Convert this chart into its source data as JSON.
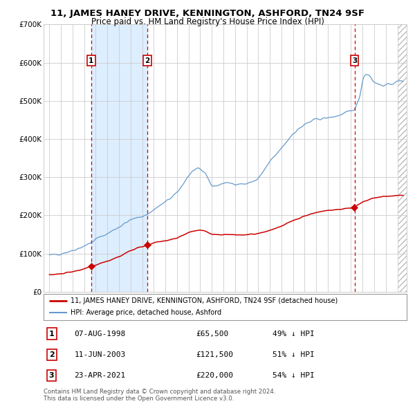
{
  "title": "11, JAMES HANEY DRIVE, KENNINGTON, ASHFORD, TN24 9SF",
  "subtitle": "Price paid vs. HM Land Registry's House Price Index (HPI)",
  "legend_red": "11, JAMES HANEY DRIVE, KENNINGTON, ASHFORD, TN24 9SF (detached house)",
  "legend_blue": "HPI: Average price, detached house, Ashford",
  "footnote1": "Contains HM Land Registry data © Crown copyright and database right 2024.",
  "footnote2": "This data is licensed under the Open Government Licence v3.0.",
  "transactions": [
    {
      "num": 1,
      "date": "07-AUG-1998",
      "price": 65500,
      "pct": "49%",
      "dir": "↓",
      "year": 1998.6
    },
    {
      "num": 2,
      "date": "11-JUN-2003",
      "price": 121500,
      "pct": "51%",
      "dir": "↓",
      "year": 2003.45
    },
    {
      "num": 3,
      "date": "23-APR-2021",
      "price": 220000,
      "pct": "54%",
      "dir": "↓",
      "year": 2021.3
    }
  ],
  "ylim": [
    0,
    700000
  ],
  "yticks": [
    0,
    100000,
    200000,
    300000,
    400000,
    500000,
    600000,
    700000
  ],
  "ytick_labels": [
    "£0",
    "£100K",
    "£200K",
    "£300K",
    "£400K",
    "£500K",
    "£600K",
    "£700K"
  ],
  "xlim_start": 1994.5,
  "xlim_end": 2025.8,
  "red_color": "#cc0000",
  "blue_color": "#6699cc",
  "shade_color": "#ddeeff",
  "grid_color": "#cccccc",
  "bg_color": "#ffffff",
  "hatch_color": "#e8e8e8"
}
